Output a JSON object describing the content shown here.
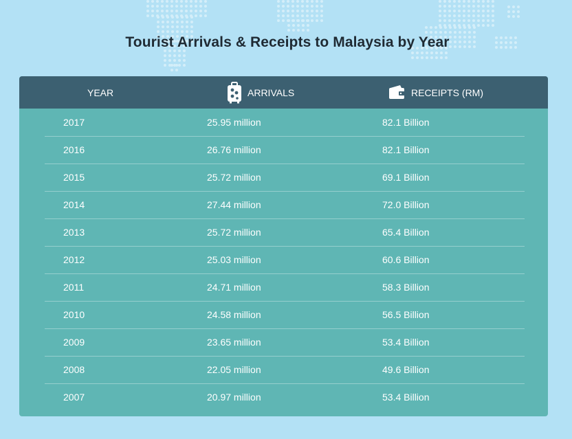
{
  "title": "Tourist Arrivals & Receipts to Malaysia by Year",
  "headers": {
    "year": "YEAR",
    "arrivals": "ARRIVALS",
    "receipts": "RECEIPTS (RM)",
    "arrivals_icon": "luggage-icon",
    "receipts_icon": "wallet-icon"
  },
  "colors": {
    "background": "#b3e1f5",
    "header": "#3c6071",
    "body": "#5fb6b4",
    "text": "#ffffff"
  },
  "rows": [
    {
      "year": "2017",
      "arrivals": "25.95 million",
      "receipts": "82.1 Billion"
    },
    {
      "year": "2016",
      "arrivals": "26.76 million",
      "receipts": "82.1 Billion"
    },
    {
      "year": "2015",
      "arrivals": "25.72 million",
      "receipts": "69.1 Billion"
    },
    {
      "year": "2014",
      "arrivals": "27.44 million",
      "receipts": "72.0 Billion"
    },
    {
      "year": "2013",
      "arrivals": "25.72 million",
      "receipts": "65.4 Billion"
    },
    {
      "year": "2012",
      "arrivals": "25.03 million",
      "receipts": "60.6 Billion"
    },
    {
      "year": "2011",
      "arrivals": "24.71 million",
      "receipts": "58.3 Billion"
    },
    {
      "year": "2010",
      "arrivals": "24.58 million",
      "receipts": "56.5 Billion"
    },
    {
      "year": "2009",
      "arrivals": "23.65 million",
      "receipts": "53.4 Billion"
    },
    {
      "year": "2008",
      "arrivals": "22.05 million",
      "receipts": "49.6 Billion"
    },
    {
      "year": "2007",
      "arrivals": "20.97 million",
      "receipts": "53.4 Billion"
    }
  ],
  "chart_data": {
    "type": "table",
    "title": "Tourist Arrivals & Receipts to Malaysia by Year",
    "columns": [
      "YEAR",
      "ARRIVALS",
      "RECEIPTS (RM)"
    ],
    "x": [
      2017,
      2016,
      2015,
      2014,
      2013,
      2012,
      2011,
      2010,
      2009,
      2008,
      2007
    ],
    "series": [
      {
        "name": "ARRIVALS",
        "unit": "million",
        "values": [
          25.95,
          26.76,
          25.72,
          27.44,
          25.72,
          25.03,
          24.71,
          24.58,
          23.65,
          22.05,
          20.97
        ]
      },
      {
        "name": "RECEIPTS (RM)",
        "unit": "Billion",
        "values": [
          82.1,
          82.1,
          69.1,
          72.0,
          65.4,
          60.6,
          58.3,
          56.5,
          53.4,
          49.6,
          53.4
        ]
      }
    ]
  }
}
